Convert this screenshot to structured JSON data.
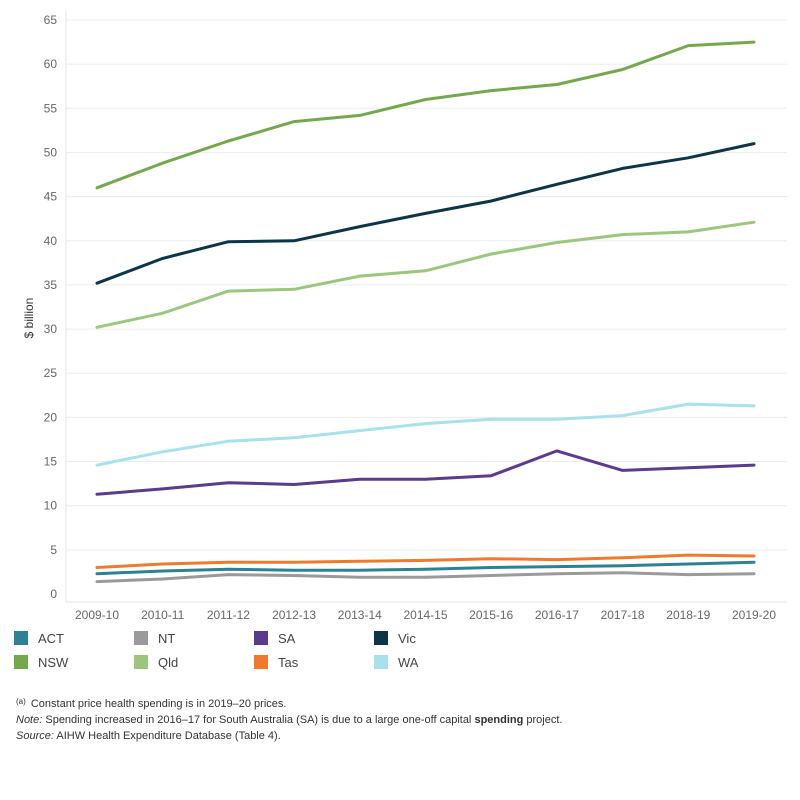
{
  "chart_data": {
    "type": "line",
    "ylabel": "$ billion",
    "xlabel": "",
    "ylim": [
      0,
      65
    ],
    "y_ticks": [
      0,
      5,
      10,
      15,
      20,
      25,
      30,
      35,
      40,
      45,
      50,
      55,
      60,
      65
    ],
    "grid": "horizontal",
    "legend_position": "bottom-left",
    "categories": [
      "2009-10",
      "2010-11",
      "2011-12",
      "2012-13",
      "2013-14",
      "2014-15",
      "2015-16",
      "2016-17",
      "2017-18",
      "2018-19",
      "2019-20"
    ],
    "series": [
      {
        "name": "NSW",
        "color": "#74a84e",
        "values": [
          46.0,
          48.8,
          51.3,
          53.5,
          54.2,
          56.0,
          57.0,
          57.7,
          59.4,
          62.1,
          62.5
        ]
      },
      {
        "name": "Vic",
        "color": "#0c3547",
        "values": [
          35.2,
          38.0,
          39.9,
          40.0,
          41.6,
          43.1,
          44.5,
          46.4,
          48.2,
          49.4,
          51.0
        ]
      },
      {
        "name": "Qld",
        "color": "#9cc57e",
        "values": [
          30.2,
          31.8,
          34.3,
          34.5,
          36.0,
          36.6,
          38.5,
          39.8,
          40.7,
          41.0,
          42.1
        ]
      },
      {
        "name": "WA",
        "color": "#a8e0ec",
        "values": [
          14.6,
          16.1,
          17.3,
          17.7,
          18.5,
          19.3,
          19.8,
          19.8,
          20.2,
          21.5,
          21.3
        ]
      },
      {
        "name": "SA",
        "color": "#5a3b8c",
        "values": [
          11.3,
          11.9,
          12.6,
          12.4,
          13.0,
          13.0,
          13.4,
          16.2,
          14.0,
          14.3,
          14.6
        ]
      },
      {
        "name": "Tas",
        "color": "#ef7a2e",
        "values": [
          3.0,
          3.4,
          3.6,
          3.6,
          3.7,
          3.8,
          4.0,
          3.9,
          4.1,
          4.4,
          4.3
        ]
      },
      {
        "name": "ACT",
        "color": "#2e8193",
        "values": [
          2.3,
          2.6,
          2.8,
          2.7,
          2.7,
          2.8,
          3.0,
          3.1,
          3.2,
          3.4,
          3.6
        ]
      },
      {
        "name": "NT",
        "color": "#9a9a9a",
        "values": [
          1.4,
          1.7,
          2.2,
          2.1,
          1.9,
          1.9,
          2.1,
          2.3,
          2.4,
          2.2,
          2.3
        ]
      }
    ]
  },
  "legend": [
    {
      "label": "ACT",
      "color": "#2e8193"
    },
    {
      "label": "NT",
      "color": "#9a9a9a"
    },
    {
      "label": "SA",
      "color": "#5a3b8c"
    },
    {
      "label": "Vic",
      "color": "#0c3547"
    },
    {
      "label": "NSW",
      "color": "#74a84e"
    },
    {
      "label": "Qld",
      "color": "#9cc57e"
    },
    {
      "label": "Tas",
      "color": "#ef7a2e"
    },
    {
      "label": "WA",
      "color": "#a8e0ec"
    }
  ],
  "notes": {
    "footnote_marker": "(a)",
    "footnote_text": "Constant price health spending is in 2019–20 prices.",
    "note_label": "Note:",
    "note_text_1": "Spending increased in 2016–17 for South Australia (SA) is due to a large one-off capital",
    "note_bold": "spending",
    "note_text_2": "project.",
    "source_label": "Source:",
    "source_text": "AIHW Health Expenditure Database (Table 4)."
  }
}
